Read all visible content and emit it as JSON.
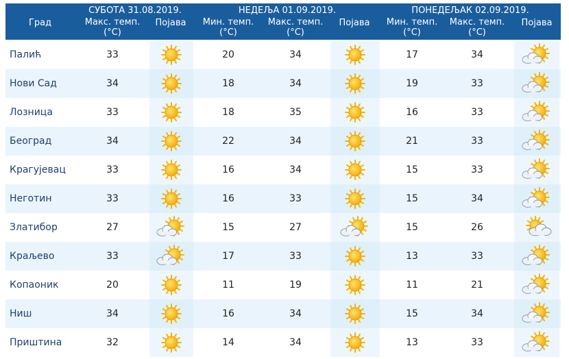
{
  "header": {
    "city_label": "Град",
    "day1": {
      "title": "СУБОТА  31.08.2019.",
      "max_label": "Макс. темп.",
      "unit": "(°C)",
      "phen_label": "Појава"
    },
    "day2": {
      "title": "НЕДЕЉА  01.09.2019.",
      "min_label": "Мин. темп.",
      "min_unit": "(°C)",
      "max_label": "Макс. темп.",
      "max_unit": "(°C)",
      "phen_label": "Појава"
    },
    "day3": {
      "title": "ПОНЕДЕЉАК  02.09.2019.",
      "min_label": "Мин. темп.",
      "min_unit": "(°C)",
      "max_label": "Макс. темп.",
      "max_unit": "(°C)",
      "phen_label": "Појава"
    }
  },
  "colors": {
    "header_bg": "#1a5d9d",
    "row_alt": "#eaf4fd",
    "city_text": "#1f3f70"
  },
  "rows": [
    {
      "city": "Палић",
      "d1_max": "33",
      "d1_icon": "sun-icon",
      "d2_min": "20",
      "d2_max": "34",
      "d2_icon": "sun-icon",
      "d3_min": "17",
      "d3_max": "34",
      "d3_icon": "sun-cloud-icon"
    },
    {
      "city": "Нови Сад",
      "d1_max": "34",
      "d1_icon": "sun-icon",
      "d2_min": "18",
      "d2_max": "34",
      "d2_icon": "sun-icon",
      "d3_min": "19",
      "d3_max": "33",
      "d3_icon": "sun-cloud-icon"
    },
    {
      "city": "Лозница",
      "d1_max": "33",
      "d1_icon": "sun-icon",
      "d2_min": "18",
      "d2_max": "35",
      "d2_icon": "sun-icon",
      "d3_min": "16",
      "d3_max": "33",
      "d3_icon": "sun-cloud-icon"
    },
    {
      "city": "Београд",
      "d1_max": "34",
      "d1_icon": "sun-icon",
      "d2_min": "22",
      "d2_max": "34",
      "d2_icon": "sun-icon",
      "d3_min": "21",
      "d3_max": "33",
      "d3_icon": "sun-cloud-icon"
    },
    {
      "city": "Крагујевац",
      "d1_max": "33",
      "d1_icon": "sun-icon",
      "d2_min": "16",
      "d2_max": "34",
      "d2_icon": "sun-icon",
      "d3_min": "15",
      "d3_max": "33",
      "d3_icon": "sun-cloud-icon"
    },
    {
      "city": "Неготин",
      "d1_max": "33",
      "d1_icon": "sun-icon",
      "d2_min": "16",
      "d2_max": "33",
      "d2_icon": "sun-icon",
      "d3_min": "15",
      "d3_max": "34",
      "d3_icon": "sun-cloud-icon"
    },
    {
      "city": "Златибор",
      "d1_max": "27",
      "d1_icon": "sun-cloud-icon",
      "d2_min": "15",
      "d2_max": "27",
      "d2_icon": "sun-cloud-icon",
      "d3_min": "15",
      "d3_max": "26",
      "d3_icon": "cloud-sun-icon"
    },
    {
      "city": "Краљево",
      "d1_max": "33",
      "d1_icon": "sun-cloud-icon",
      "d2_min": "17",
      "d2_max": "33",
      "d2_icon": "sun-icon",
      "d3_min": "13",
      "d3_max": "33",
      "d3_icon": "sun-cloud-icon"
    },
    {
      "city": "Копаоник",
      "d1_max": "20",
      "d1_icon": "sun-icon",
      "d2_min": "11",
      "d2_max": "19",
      "d2_icon": "sun-icon",
      "d3_min": "11",
      "d3_max": "21",
      "d3_icon": "sun-cloud-icon"
    },
    {
      "city": "Ниш",
      "d1_max": "34",
      "d1_icon": "sun-icon",
      "d2_min": "16",
      "d2_max": "34",
      "d2_icon": "sun-icon",
      "d3_min": "15",
      "d3_max": "34",
      "d3_icon": "sun-cloud-icon"
    },
    {
      "city": "Приштина",
      "d1_max": "32",
      "d1_icon": "sun-icon",
      "d2_min": "14",
      "d2_max": "34",
      "d2_icon": "sun-icon",
      "d3_min": "13",
      "d3_max": "33",
      "d3_icon": "sun-cloud-icon"
    }
  ]
}
